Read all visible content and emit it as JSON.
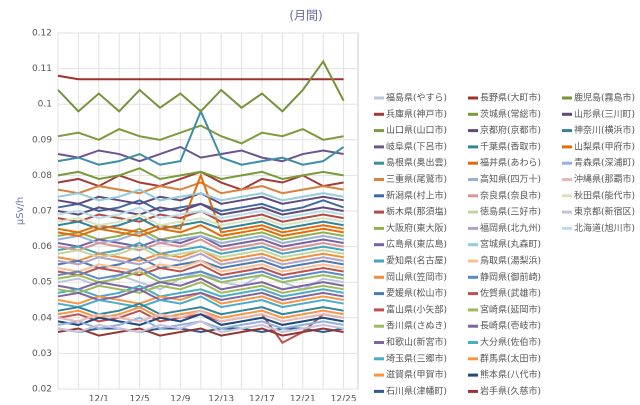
{
  "chart_data": {
    "type": "line",
    "title": "(月間)",
    "y_label": "μSv/h",
    "categories": [
      null,
      null,
      "12/1",
      null,
      "12/5",
      null,
      "12/9",
      null,
      "12/13",
      null,
      "12/17",
      null,
      "12/21",
      null,
      "12/25"
    ],
    "ylim": [
      0.02,
      0.12
    ],
    "yticks": [
      0.02,
      0.03,
      0.04,
      0.05,
      0.06,
      0.07,
      0.08,
      0.09,
      0.1,
      0.11,
      0.12
    ],
    "grid": true,
    "series": [
      {
        "name": "福島県(やすら)",
        "color": "#b9c7dc",
        "values": [
          0.05,
          0.051,
          0.049,
          0.052,
          0.05,
          0.048,
          0.051,
          0.053,
          0.05,
          0.049,
          0.052,
          0.05,
          0.048,
          0.051,
          0.05
        ]
      },
      {
        "name": "兵庫県(神戸市)",
        "color": "#a33b38",
        "values": [
          0.078,
          0.079,
          0.077,
          0.08,
          0.078,
          0.077,
          0.079,
          0.081,
          0.078,
          0.076,
          0.079,
          0.078,
          0.08,
          0.077,
          0.078
        ]
      },
      {
        "name": "山口県(山口市)",
        "color": "#7f9a3f",
        "values": [
          0.091,
          0.092,
          0.09,
          0.093,
          0.091,
          0.09,
          0.092,
          0.094,
          0.091,
          0.089,
          0.092,
          0.091,
          0.093,
          0.09,
          0.091
        ]
      },
      {
        "name": "岐阜県(下呂市)",
        "color": "#6d5490",
        "values": [
          0.086,
          0.085,
          0.087,
          0.086,
          0.084,
          0.086,
          0.088,
          0.085,
          0.086,
          0.087,
          0.085,
          0.084,
          0.086,
          0.087,
          0.086
        ]
      },
      {
        "name": "島根県(奥出雲)",
        "color": "#3c8ea5",
        "values": [
          0.084,
          0.085,
          0.083,
          0.084,
          0.086,
          0.083,
          0.084,
          0.098,
          0.085,
          0.083,
          0.084,
          0.085,
          0.083,
          0.084,
          0.088
        ]
      },
      {
        "name": "三重県(尾鷲市)",
        "color": "#d9813d",
        "values": [
          0.076,
          0.075,
          0.077,
          0.076,
          0.075,
          0.077,
          0.076,
          0.078,
          0.075,
          0.076,
          0.077,
          0.075,
          0.076,
          0.077,
          0.076
        ]
      },
      {
        "name": "新潟県(村上市)",
        "color": "#3f6aa0",
        "values": [
          0.071,
          0.072,
          0.07,
          0.071,
          0.073,
          0.07,
          0.071,
          0.072,
          0.07,
          0.071,
          0.072,
          0.07,
          0.071,
          0.073,
          0.071
        ]
      },
      {
        "name": "栃木県(那須塩)",
        "color": "#b34a47",
        "values": [
          0.068,
          0.067,
          0.069,
          0.068,
          0.067,
          0.069,
          0.068,
          0.07,
          0.067,
          0.068,
          0.069,
          0.067,
          0.068,
          0.069,
          0.068
        ]
      },
      {
        "name": "大阪府(東大阪)",
        "color": "#8fb04e",
        "values": [
          0.063,
          0.064,
          0.062,
          0.063,
          0.065,
          0.062,
          0.063,
          0.064,
          0.062,
          0.063,
          0.064,
          0.062,
          0.063,
          0.064,
          0.063
        ]
      },
      {
        "name": "広島県(東広島)",
        "color": "#7a60a0",
        "values": [
          0.061,
          0.06,
          0.062,
          0.061,
          0.06,
          0.062,
          0.061,
          0.063,
          0.06,
          0.061,
          0.062,
          0.06,
          0.061,
          0.062,
          0.061
        ]
      },
      {
        "name": "愛知県(名古屋)",
        "color": "#47a4bd",
        "values": [
          0.059,
          0.06,
          0.058,
          0.059,
          0.061,
          0.058,
          0.059,
          0.06,
          0.058,
          0.059,
          0.06,
          0.058,
          0.059,
          0.06,
          0.059
        ]
      },
      {
        "name": "岡山県(笠岡市)",
        "color": "#f08f3e",
        "values": [
          0.057,
          0.056,
          0.058,
          0.057,
          0.056,
          0.058,
          0.057,
          0.059,
          0.056,
          0.057,
          0.058,
          0.056,
          0.057,
          0.058,
          0.057
        ]
      },
      {
        "name": "愛媛県(松山市)",
        "color": "#4a7ab8",
        "values": [
          0.055,
          0.056,
          0.054,
          0.055,
          0.057,
          0.054,
          0.055,
          0.056,
          0.054,
          0.055,
          0.056,
          0.054,
          0.055,
          0.056,
          0.055
        ]
      },
      {
        "name": "富山県(小矢部)",
        "color": "#c0504d",
        "values": [
          0.053,
          0.052,
          0.054,
          0.053,
          0.052,
          0.054,
          0.053,
          0.055,
          0.052,
          0.053,
          0.054,
          0.052,
          0.053,
          0.054,
          0.053
        ]
      },
      {
        "name": "香川県(さぬき)",
        "color": "#9bbb59",
        "values": [
          0.051,
          0.052,
          0.05,
          0.051,
          0.053,
          0.05,
          0.051,
          0.052,
          0.05,
          0.051,
          0.052,
          0.05,
          0.051,
          0.052,
          0.051
        ]
      },
      {
        "name": "和歌山(新宮市)",
        "color": "#8064a2",
        "values": [
          0.049,
          0.048,
          0.05,
          0.049,
          0.048,
          0.05,
          0.049,
          0.051,
          0.048,
          0.049,
          0.05,
          0.048,
          0.049,
          0.05,
          0.049
        ]
      },
      {
        "name": "埼玉県(三郷市)",
        "color": "#4bacc6",
        "values": [
          0.047,
          0.048,
          0.046,
          0.047,
          0.049,
          0.046,
          0.047,
          0.048,
          0.046,
          0.047,
          0.048,
          0.046,
          0.047,
          0.048,
          0.047
        ]
      },
      {
        "name": "滋賀県(甲賀市)",
        "color": "#f79646",
        "values": [
          0.045,
          0.044,
          0.046,
          0.045,
          0.044,
          0.046,
          0.045,
          0.047,
          0.044,
          0.045,
          0.046,
          0.044,
          0.045,
          0.046,
          0.045
        ]
      },
      {
        "name": "石川県(津幡町)",
        "color": "#2c5d8f",
        "values": [
          0.037,
          0.036,
          0.037,
          0.037,
          0.036,
          0.037,
          0.037,
          0.036,
          0.037,
          0.037,
          0.036,
          0.037,
          0.037,
          0.036,
          0.037
        ]
      },
      {
        "name": "長野県(大町市)",
        "color": "#a3302c",
        "values": [
          0.108,
          0.107,
          0.107,
          0.107,
          0.107,
          0.107,
          0.107,
          0.107,
          0.107,
          0.107,
          0.107,
          0.107,
          0.107,
          0.107,
          0.107
        ]
      },
      {
        "name": "茨城県(常総市)",
        "color": "#7a9a3a",
        "values": [
          0.08,
          0.081,
          0.079,
          0.08,
          0.082,
          0.079,
          0.08,
          0.081,
          0.079,
          0.08,
          0.081,
          0.079,
          0.08,
          0.081,
          0.08
        ]
      },
      {
        "name": "京都府(京都市)",
        "color": "#604a7b",
        "values": [
          0.073,
          0.072,
          0.074,
          0.073,
          0.072,
          0.074,
          0.073,
          0.075,
          0.072,
          0.073,
          0.074,
          0.072,
          0.073,
          0.074,
          0.073
        ]
      },
      {
        "name": "千葉県(香取市)",
        "color": "#31859c",
        "values": [
          0.066,
          0.067,
          0.065,
          0.066,
          0.068,
          0.065,
          0.066,
          0.067,
          0.065,
          0.066,
          0.067,
          0.065,
          0.066,
          0.067,
          0.066
        ]
      },
      {
        "name": "福井県(あわら)",
        "color": "#e46c0a",
        "values": [
          0.065,
          0.064,
          0.066,
          0.065,
          0.064,
          0.066,
          0.065,
          0.08,
          0.064,
          0.065,
          0.066,
          0.064,
          0.065,
          0.066,
          0.065
        ]
      },
      {
        "name": "高知県(四万十)",
        "color": "#95b3d7",
        "values": [
          0.062,
          0.063,
          0.061,
          0.062,
          0.064,
          0.061,
          0.062,
          0.063,
          0.061,
          0.062,
          0.063,
          0.061,
          0.062,
          0.063,
          0.062
        ]
      },
      {
        "name": "奈良県(奈良市)",
        "color": "#d99694",
        "values": [
          0.06,
          0.059,
          0.061,
          0.06,
          0.059,
          0.061,
          0.06,
          0.062,
          0.059,
          0.06,
          0.061,
          0.059,
          0.06,
          0.061,
          0.06
        ]
      },
      {
        "name": "徳島県(三好市)",
        "color": "#c3d69b",
        "values": [
          0.058,
          0.059,
          0.057,
          0.058,
          0.06,
          0.057,
          0.058,
          0.059,
          0.057,
          0.058,
          0.059,
          0.057,
          0.058,
          0.059,
          0.058
        ]
      },
      {
        "name": "福岡県(北九州)",
        "color": "#b3a2c7",
        "values": [
          0.056,
          0.055,
          0.057,
          0.056,
          0.055,
          0.057,
          0.056,
          0.058,
          0.055,
          0.056,
          0.057,
          0.055,
          0.056,
          0.057,
          0.056
        ]
      },
      {
        "name": "宮城県(丸森町)",
        "color": "#93cddd",
        "values": [
          0.074,
          0.075,
          0.073,
          0.074,
          0.076,
          0.073,
          0.074,
          0.075,
          0.073,
          0.074,
          0.075,
          0.073,
          0.074,
          0.075,
          0.074
        ]
      },
      {
        "name": "鳥取県(湯梨浜)",
        "color": "#fac08f",
        "values": [
          0.054,
          0.053,
          0.055,
          0.054,
          0.053,
          0.055,
          0.054,
          0.056,
          0.053,
          0.054,
          0.055,
          0.053,
          0.054,
          0.055,
          0.054
        ]
      },
      {
        "name": "静岡県(御前崎)",
        "color": "#5b8bc4",
        "values": [
          0.052,
          0.053,
          0.051,
          0.052,
          0.054,
          0.051,
          0.052,
          0.053,
          0.051,
          0.052,
          0.053,
          0.051,
          0.052,
          0.053,
          0.052
        ]
      },
      {
        "name": "佐賀県(武雄市)",
        "color": "#c0504d",
        "values": [
          0.04,
          0.041,
          0.039,
          0.04,
          0.042,
          0.039,
          0.04,
          0.041,
          0.039,
          0.04,
          0.041,
          0.033,
          0.036,
          0.041,
          0.04
        ]
      },
      {
        "name": "宮崎県(延岡市)",
        "color": "#9bbb59",
        "values": [
          0.048,
          0.047,
          0.049,
          0.048,
          0.047,
          0.049,
          0.048,
          0.05,
          0.047,
          0.048,
          0.049,
          0.047,
          0.048,
          0.049,
          0.048
        ]
      },
      {
        "name": "長崎県(壱岐市)",
        "color": "#8064a2",
        "values": [
          0.046,
          0.047,
          0.045,
          0.046,
          0.048,
          0.045,
          0.046,
          0.047,
          0.045,
          0.046,
          0.047,
          0.045,
          0.046,
          0.047,
          0.046
        ]
      },
      {
        "name": "大分県(佐伯市)",
        "color": "#4bacc6",
        "values": [
          0.044,
          0.043,
          0.045,
          0.044,
          0.043,
          0.045,
          0.044,
          0.046,
          0.043,
          0.044,
          0.045,
          0.043,
          0.044,
          0.045,
          0.044
        ]
      },
      {
        "name": "群馬県(太田市)",
        "color": "#f79646",
        "values": [
          0.041,
          0.042,
          0.04,
          0.041,
          0.043,
          0.04,
          0.041,
          0.042,
          0.04,
          0.041,
          0.042,
          0.04,
          0.041,
          0.042,
          0.041
        ]
      },
      {
        "name": "熊本県(八代市)",
        "color": "#1f497d",
        "values": [
          0.039,
          0.038,
          0.04,
          0.039,
          0.038,
          0.04,
          0.039,
          0.041,
          0.038,
          0.039,
          0.04,
          0.038,
          0.039,
          0.04,
          0.039
        ]
      },
      {
        "name": "岩手県(久慈市)",
        "color": "#943634",
        "values": [
          0.036,
          0.037,
          0.035,
          0.036,
          0.037,
          0.035,
          0.036,
          0.037,
          0.035,
          0.036,
          0.037,
          0.035,
          0.036,
          0.037,
          0.036
        ]
      },
      {
        "name": "鹿児島(霧島市)",
        "color": "#76923c",
        "values": [
          0.104,
          0.098,
          0.103,
          0.098,
          0.104,
          0.099,
          0.103,
          0.098,
          0.104,
          0.099,
          0.103,
          0.098,
          0.104,
          0.112,
          0.101
        ]
      },
      {
        "name": "山形県(三川町)",
        "color": "#5f497a",
        "values": [
          0.07,
          0.069,
          0.071,
          0.07,
          0.069,
          0.071,
          0.07,
          0.072,
          0.069,
          0.07,
          0.071,
          0.069,
          0.07,
          0.071,
          0.07
        ]
      },
      {
        "name": "神奈川(横浜市)",
        "color": "#31859c",
        "values": [
          0.042,
          0.043,
          0.041,
          0.042,
          0.044,
          0.041,
          0.042,
          0.043,
          0.041,
          0.042,
          0.043,
          0.041,
          0.042,
          0.043,
          0.042
        ]
      },
      {
        "name": "山梨県(甲府市)",
        "color": "#e46c0a",
        "values": [
          0.064,
          0.063,
          0.065,
          0.064,
          0.063,
          0.065,
          0.064,
          0.066,
          0.063,
          0.064,
          0.065,
          0.063,
          0.064,
          0.065,
          0.064
        ]
      },
      {
        "name": "青森県(深浦町)",
        "color": "#8db3e2",
        "values": [
          0.038,
          0.039,
          0.037,
          0.038,
          0.04,
          0.037,
          0.038,
          0.039,
          0.037,
          0.038,
          0.039,
          0.037,
          0.038,
          0.039,
          0.038
        ]
      },
      {
        "name": "沖縄県(那覇市)",
        "color": "#e6b9b8",
        "values": [
          0.04,
          0.039,
          0.041,
          0.04,
          0.039,
          0.041,
          0.04,
          0.042,
          0.039,
          0.04,
          0.041,
          0.039,
          0.04,
          0.041,
          0.04
        ]
      },
      {
        "name": "秋田県(能代市)",
        "color": "#d7e4bd",
        "values": [
          0.067,
          0.068,
          0.066,
          0.067,
          0.069,
          0.066,
          0.067,
          0.068,
          0.066,
          0.067,
          0.068,
          0.066,
          0.067,
          0.068,
          0.067
        ]
      },
      {
        "name": "東京都(新宿区)",
        "color": "#ccc1da",
        "values": [
          0.037,
          0.036,
          0.038,
          0.037,
          0.036,
          0.038,
          0.037,
          0.039,
          0.036,
          0.037,
          0.038,
          0.036,
          0.037,
          0.038,
          0.037
        ]
      },
      {
        "name": "北海道(旭川市)",
        "color": "#b7dee8",
        "values": [
          0.069,
          0.07,
          0.068,
          0.069,
          0.071,
          0.068,
          0.069,
          0.07,
          0.068,
          0.069,
          0.07,
          0.068,
          0.069,
          0.07,
          0.069
        ]
      }
    ]
  }
}
